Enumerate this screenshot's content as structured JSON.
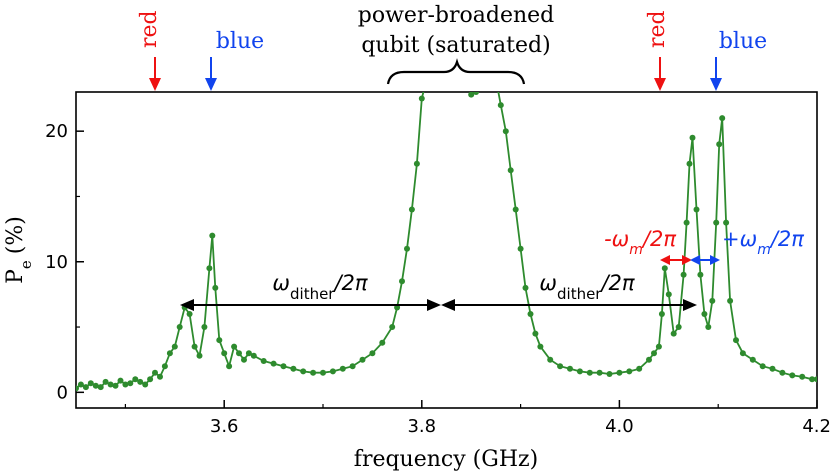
{
  "chart_data": {
    "type": "line",
    "xlabel": "frequency (GHz)",
    "ylabel": "P",
    "ylabel_sub": "e",
    "ylabel_unit": "(%)",
    "xlim": [
      3.45,
      4.2
    ],
    "ylim": [
      -1.2,
      23
    ],
    "xticks": [
      3.6,
      3.8,
      4.0,
      4.2
    ],
    "xtick_labels": [
      "3.6",
      "3.8",
      "4.0",
      "4.2"
    ],
    "yticks": [
      0,
      10,
      20
    ],
    "ytick_labels": [
      "0",
      "10",
      "20"
    ],
    "grid": false,
    "legend": "none",
    "colors": {
      "series": "#2e8b2e",
      "red": "#ee1111",
      "blue": "#1144ee",
      "black": "#000000"
    },
    "series": [
      {
        "x": [
          3.45,
          3.455,
          3.46,
          3.465,
          3.47,
          3.475,
          3.48,
          3.485,
          3.49,
          3.495,
          3.5,
          3.505,
          3.51,
          3.515,
          3.52,
          3.525,
          3.53,
          3.535,
          3.54,
          3.545,
          3.55,
          3.555,
          3.56,
          3.565,
          3.57,
          3.575,
          3.58,
          3.585,
          3.588,
          3.591,
          3.595,
          3.6,
          3.605,
          3.61,
          3.615,
          3.62,
          3.625,
          3.63,
          3.64,
          3.65,
          3.66,
          3.67,
          3.68,
          3.69,
          3.7,
          3.71,
          3.72,
          3.73,
          3.74,
          3.75,
          3.76,
          3.77,
          3.775,
          3.78,
          3.785,
          3.79,
          3.795,
          3.8,
          3.805,
          3.81,
          3.815,
          3.82,
          3.825,
          3.83,
          3.835,
          3.84,
          3.845,
          3.85,
          3.855,
          3.86,
          3.865,
          3.87,
          3.875,
          3.88,
          3.885,
          3.89,
          3.895,
          3.9,
          3.905,
          3.91,
          3.915,
          3.92,
          3.93,
          3.94,
          3.95,
          3.96,
          3.97,
          3.98,
          3.99,
          4.0,
          4.01,
          4.02,
          4.03,
          4.035,
          4.04,
          4.043,
          4.046,
          4.05,
          4.055,
          4.06,
          4.065,
          4.068,
          4.071,
          4.074,
          4.078,
          4.082,
          4.086,
          4.09,
          4.094,
          4.098,
          4.101,
          4.104,
          4.108,
          4.112,
          4.118,
          4.125,
          4.135,
          4.145,
          4.155,
          4.165,
          4.175,
          4.185,
          4.195,
          4.2
        ],
        "y": [
          0.3,
          0.6,
          0.4,
          0.7,
          0.5,
          0.4,
          0.8,
          0.6,
          0.5,
          0.9,
          0.6,
          0.7,
          1.0,
          0.8,
          0.6,
          1.0,
          1.5,
          1.2,
          2.0,
          3.0,
          3.5,
          5.0,
          6.5,
          6.0,
          3.5,
          2.8,
          5.0,
          9.5,
          12.0,
          8.0,
          4.0,
          3.0,
          2.0,
          3.5,
          3.0,
          2.5,
          3.0,
          2.8,
          2.4,
          2.2,
          2.0,
          1.8,
          1.6,
          1.5,
          1.5,
          1.6,
          1.8,
          2.0,
          2.5,
          3.0,
          3.8,
          5.0,
          6.5,
          8.5,
          11.0,
          14.0,
          17.5,
          22.5,
          24.0,
          24.0,
          24.0,
          24.0,
          24.0,
          24.0,
          24.0,
          24.0,
          24.0,
          22.8,
          23.0,
          24.0,
          24.0,
          24.0,
          24.0,
          22.0,
          20.0,
          17.0,
          14.0,
          11.0,
          8.0,
          6.0,
          4.5,
          3.5,
          2.5,
          2.0,
          1.8,
          1.6,
          1.5,
          1.5,
          1.4,
          1.5,
          1.6,
          1.8,
          2.5,
          3.0,
          3.5,
          6.0,
          9.5,
          7.5,
          4.5,
          5.0,
          9.0,
          13.0,
          17.5,
          19.5,
          14.0,
          9.0,
          6.0,
          5.0,
          7.0,
          13.0,
          19.0,
          21.0,
          13.0,
          7.0,
          4.0,
          3.0,
          2.5,
          2.0,
          1.8,
          1.5,
          1.3,
          1.2,
          1.0,
          1.0
        ]
      }
    ],
    "annotations": {
      "top_left_red": "red",
      "top_left_blue": "blue",
      "top_right_red": "red",
      "top_right_blue": "blue",
      "qubit_line1": "power-broadened",
      "qubit_line2": "qubit (saturated)",
      "dither_symbol": "ω",
      "dither_sub": "dither",
      "dither_rest": "/2π",
      "minus_wm_prefix": "-ω",
      "plus_wm_prefix": "+ω",
      "wm_sub": "m",
      "wm_rest": "/2π"
    }
  }
}
